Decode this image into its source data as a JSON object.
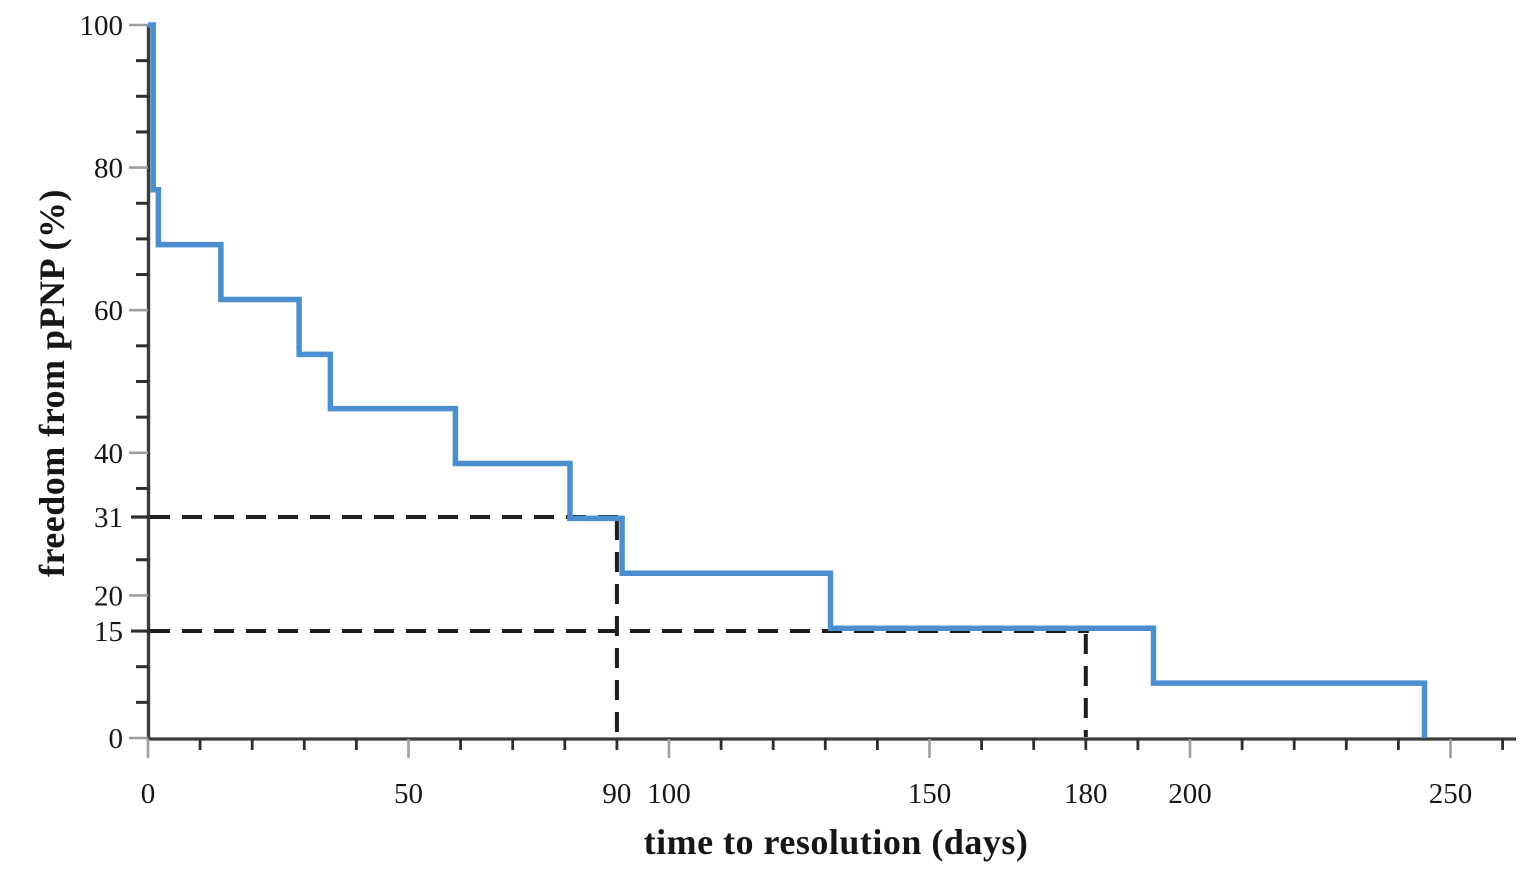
{
  "chart_data": {
    "type": "line",
    "subtype": "kaplan_meier_step_curve",
    "title": "",
    "xlabel": "time to resolution (days)",
    "ylabel": "freedom from pPNP (%)",
    "xlim": [
      0,
      262
    ],
    "ylim": [
      0,
      100
    ],
    "grid": false,
    "legend": null,
    "x_major_ticks": [
      0,
      50,
      100,
      150,
      200,
      250
    ],
    "x_minor_ticks": [
      10,
      20,
      30,
      40,
      60,
      70,
      80,
      110,
      120,
      130,
      140,
      160,
      170,
      190,
      210,
      220,
      230,
      240,
      260
    ],
    "y_major_ticks": [
      0,
      20,
      40,
      60,
      80,
      100
    ],
    "y_minor_ticks": [
      5,
      10,
      25,
      35,
      45,
      50,
      55,
      65,
      70,
      75,
      85,
      90,
      95
    ],
    "series": [
      {
        "name": "freedom from pPNP",
        "color": "#4b8fd0",
        "step_points": [
          {
            "day": 0,
            "pct": 100
          },
          {
            "day": 1,
            "pct": 76.9
          },
          {
            "day": 2,
            "pct": 69.2
          },
          {
            "day": 14,
            "pct": 61.5
          },
          {
            "day": 29,
            "pct": 53.8
          },
          {
            "day": 35,
            "pct": 46.2
          },
          {
            "day": 59,
            "pct": 38.5
          },
          {
            "day": 81,
            "pct": 30.8
          },
          {
            "day": 91,
            "pct": 23.1
          },
          {
            "day": 131,
            "pct": 15.4
          },
          {
            "day": 193,
            "pct": 7.7
          },
          {
            "day": 245,
            "pct": 0
          }
        ]
      }
    ],
    "reference_lines": [
      {
        "x_day": 90,
        "y_pct": 31,
        "x_label": "90",
        "y_label": "31",
        "style": "dashed"
      },
      {
        "x_day": 180,
        "y_pct": 15,
        "x_label": "180",
        "y_label": "15",
        "style": "dashed"
      }
    ],
    "colors": {
      "curve": "#4b8fd0",
      "axis": "#3c3c3c",
      "major_tick": "#9e9e9e",
      "minor_tick": "#2e2e2e",
      "dashed": "#1d1d1d",
      "text": "#161616",
      "background": "#ffffff"
    }
  }
}
